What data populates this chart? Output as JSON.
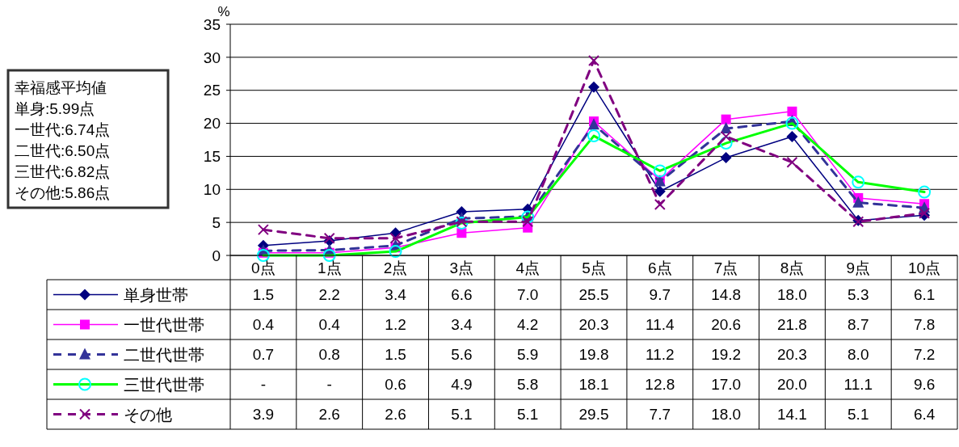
{
  "chart_data": {
    "type": "line",
    "ylabel": "%",
    "categories": [
      "0点",
      "1点",
      "2点",
      "3点",
      "4点",
      "5点",
      "6点",
      "7点",
      "8点",
      "9点",
      "10点"
    ],
    "ylim": [
      0,
      35
    ],
    "yticks": [
      0,
      5,
      10,
      15,
      20,
      25,
      30,
      35
    ],
    "grid": "y",
    "legend": "bottom left",
    "data_labels": true,
    "annotations": [
      "幸福感平均値",
      "単身:5.99点",
      "一世代:6.74点",
      "二世代:6.50点",
      "三世代:6.82点",
      "その他:5.86点"
    ],
    "series": [
      {
        "name": "単身世帯",
        "color": "#000080",
        "marker": "diamond",
        "line_style": "solid",
        "values": [
          1.5,
          2.2,
          3.4,
          6.6,
          7.0,
          25.5,
          9.7,
          14.8,
          18.0,
          5.3,
          6.1
        ],
        "value_labels": [
          "1.5",
          "2.2",
          "3.4",
          "6.6",
          "7.0",
          "25.5",
          "9.7",
          "14.8",
          "18.0",
          "5.3",
          "6.1"
        ]
      },
      {
        "name": "一世代世帯",
        "color": "#ff00ff",
        "marker": "square",
        "line_style": "solid",
        "values": [
          0.4,
          0.4,
          1.2,
          3.4,
          4.2,
          20.3,
          11.4,
          20.6,
          21.8,
          8.7,
          7.8
        ],
        "value_labels": [
          "0.4",
          "0.4",
          "1.2",
          "3.4",
          "4.2",
          "20.3",
          "11.4",
          "20.6",
          "21.8",
          "8.7",
          "7.8"
        ]
      },
      {
        "name": "二世代世帯",
        "color": "#333399",
        "marker": "triangle",
        "line_style": "dashed",
        "values": [
          0.7,
          0.8,
          1.5,
          5.6,
          5.9,
          19.8,
          11.2,
          19.2,
          20.3,
          8.0,
          7.2
        ],
        "value_labels": [
          "0.7",
          "0.8",
          "1.5",
          "5.6",
          "5.9",
          "19.8",
          "11.2",
          "19.2",
          "20.3",
          "8.0",
          "7.2"
        ]
      },
      {
        "name": "三世代世帯",
        "color": "#00ff00",
        "marker": "circle",
        "line_style": "solid",
        "values": [
          0,
          0,
          0.6,
          4.9,
          5.8,
          18.1,
          12.8,
          17.0,
          20.0,
          11.1,
          9.6
        ],
        "value_labels": [
          "-",
          "-",
          "0.6",
          "4.9",
          "5.8",
          "18.1",
          "12.8",
          "17.0",
          "20.0",
          "11.1",
          "9.6"
        ]
      },
      {
        "name": "その他",
        "color": "#800080",
        "marker": "cross",
        "line_style": "dashed",
        "values": [
          3.9,
          2.6,
          2.6,
          5.1,
          5.1,
          29.5,
          7.7,
          18.0,
          14.1,
          5.1,
          6.4
        ],
        "value_labels": [
          "3.9",
          "2.6",
          "2.6",
          "5.1",
          "5.1",
          "29.5",
          "7.7",
          "18.0",
          "14.1",
          "5.1",
          "6.4"
        ]
      }
    ]
  }
}
